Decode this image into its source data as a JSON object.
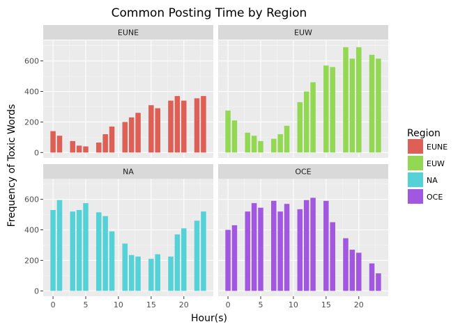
{
  "chart_data": {
    "type": "bar",
    "title": "Common Posting Time by Region",
    "xlabel": "Hour(s)",
    "ylabel": "Frequency of Toxic Words",
    "facet_layout": "2x2",
    "x": [
      0,
      1,
      2,
      3,
      4,
      5,
      6,
      7,
      8,
      9,
      10,
      11,
      12,
      13,
      14,
      15,
      16,
      17,
      18,
      19,
      20,
      21,
      22,
      23
    ],
    "x_ticks": [
      0,
      5,
      10,
      15,
      20
    ],
    "xlim": [
      -1.5,
      24.5
    ],
    "y_ticks": [
      0,
      200,
      400,
      600
    ],
    "ylim": [
      -35,
      735
    ],
    "grid": true,
    "legend": {
      "title": "Region",
      "position": "right"
    },
    "series": [
      {
        "name": "EUNE",
        "color": "#dd5f55",
        "values": [
          140,
          110,
          0,
          75,
          45,
          40,
          0,
          65,
          120,
          170,
          0,
          200,
          230,
          260,
          0,
          310,
          290,
          0,
          340,
          370,
          340,
          0,
          355,
          370
        ]
      },
      {
        "name": "EUW",
        "color": "#93d853",
        "values": [
          275,
          210,
          0,
          130,
          110,
          75,
          0,
          90,
          120,
          175,
          0,
          330,
          400,
          460,
          0,
          570,
          560,
          0,
          690,
          615,
          690,
          0,
          640,
          615
        ]
      },
      {
        "name": "NA",
        "color": "#55d1d8",
        "values": [
          530,
          595,
          0,
          520,
          530,
          575,
          0,
          515,
          490,
          390,
          0,
          310,
          235,
          225,
          0,
          210,
          240,
          0,
          225,
          370,
          410,
          0,
          460,
          520
        ]
      },
      {
        "name": "OCE",
        "color": "#a257e0",
        "values": [
          400,
          430,
          0,
          520,
          575,
          545,
          0,
          590,
          520,
          570,
          0,
          535,
          595,
          610,
          0,
          590,
          450,
          0,
          345,
          270,
          250,
          0,
          180,
          115
        ]
      }
    ],
    "series_hours": {
      "EUNE": [
        0,
        1,
        2,
        3,
        4,
        5,
        6,
        7,
        8,
        9,
        10,
        11,
        12,
        13,
        14,
        15,
        16,
        17,
        18,
        19,
        20,
        21,
        22,
        23
      ],
      "NA_values_by_hour": [
        530,
        595,
        0,
        520,
        530,
        575,
        0,
        515,
        490,
        390,
        0,
        310,
        235,
        225,
        0,
        210,
        240,
        0,
        225,
        370,
        410,
        0,
        460,
        520
      ]
    }
  }
}
